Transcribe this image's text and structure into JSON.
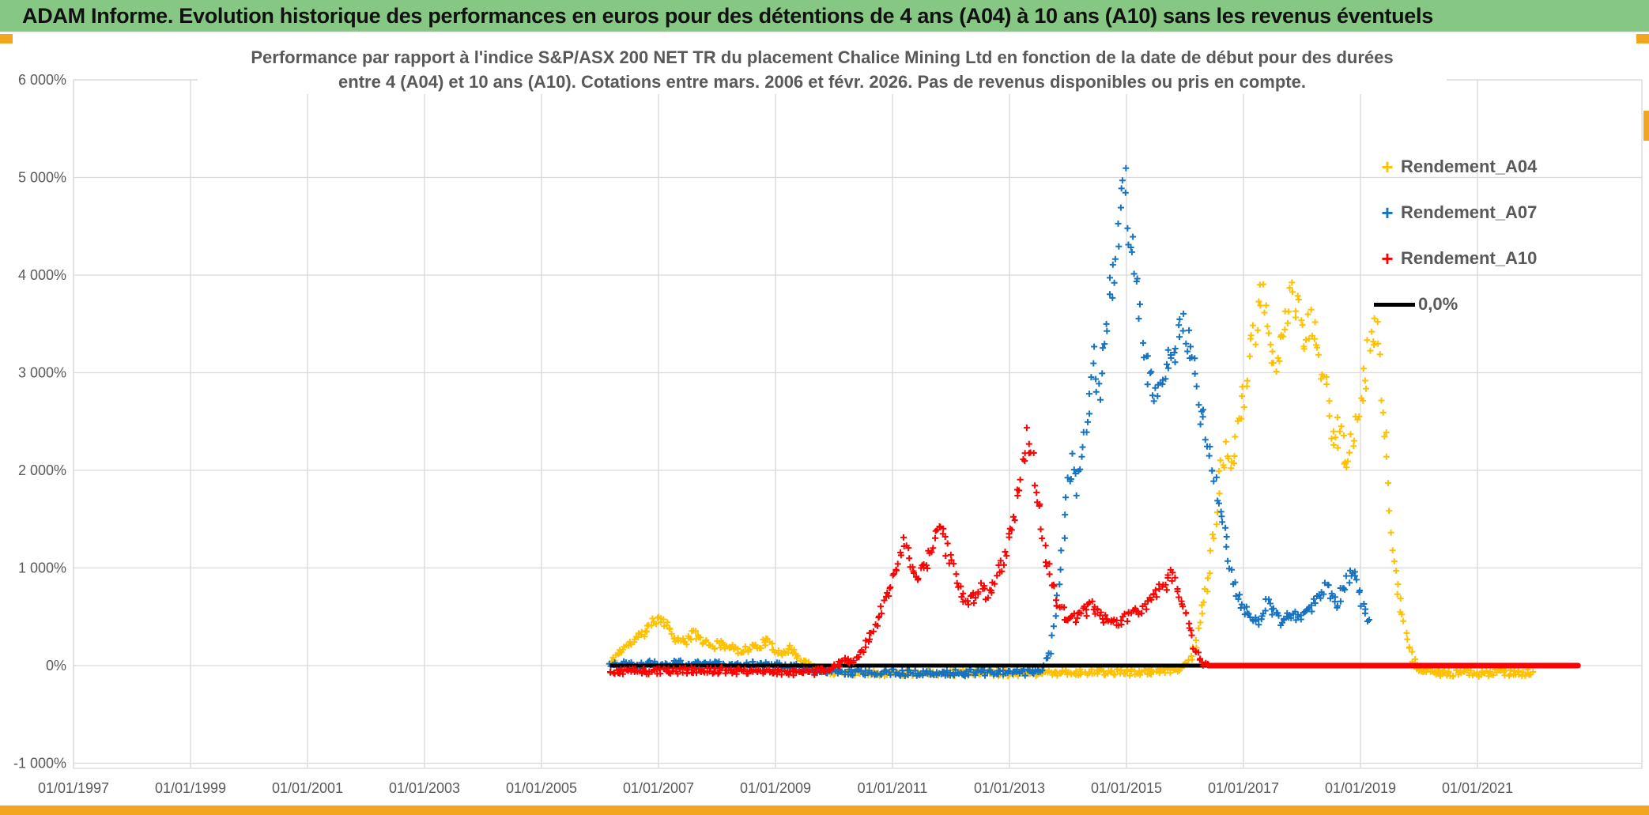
{
  "header": {
    "title": "ADAM Informe. Evolution historique des performances en euros pour des détentions de 4 ans (A04) à 10 ans (A10) sans les revenus éventuels",
    "bar_color": "#85C783",
    "accent_color": "#F2A51F"
  },
  "chart_data": {
    "type": "scatter",
    "title_lines": [
      "Performance par rapport à l'indice S&P/ASX 200 NET TR  du placement Chalice Mining Ltd en fonction de la date de début pour des durées",
      "entre 4 (A04) et 10 ans (A10). Cotations entre mars. 2006 et févr. 2026. Pas de revenus disponibles ou pris en compte."
    ],
    "grid": true,
    "grid_color": "#D9D9D9",
    "axis_text_color": "#595959",
    "x_axis": {
      "tick_labels": [
        "01/01/1997",
        "01/01/1999",
        "01/01/2001",
        "01/01/2003",
        "01/01/2005",
        "01/01/2007",
        "01/01/2009",
        "01/01/2011",
        "01/01/2013",
        "01/01/2015",
        "01/01/2017",
        "01/01/2019",
        "01/01/2021"
      ],
      "tick_years": [
        1997,
        1999,
        2001,
        2003,
        2005,
        2007,
        2009,
        2011,
        2013,
        2015,
        2017,
        2019,
        2021
      ],
      "range_years": [
        1997,
        2023.7
      ]
    },
    "y_axis": {
      "tick_labels": [
        "-1 000%",
        "0%",
        "1 000%",
        "2 000%",
        "3 000%",
        "4 000%",
        "5 000%",
        "6 000%"
      ],
      "tick_values": [
        -1000,
        0,
        1000,
        2000,
        3000,
        4000,
        5000,
        6000
      ],
      "ylim": [
        -1000,
        6000
      ]
    },
    "legend": {
      "position": "top-right",
      "entries": [
        {
          "label": "Rendement_A04",
          "marker": "plus",
          "color": "#FFC000"
        },
        {
          "label": "Rendement_A07",
          "marker": "plus",
          "color": "#1673C2"
        },
        {
          "label": "Rendement_A10",
          "marker": "plus",
          "color": "#FF0000"
        },
        {
          "label": "0,0%",
          "marker": "line",
          "color": "#000000"
        }
      ]
    },
    "series": [
      {
        "name": "Rendement_A04",
        "color": "#FFC000",
        "marker": "plus",
        "seed": 11,
        "points": [
          [
            2006.17,
            20
          ],
          [
            2006.3,
            120
          ],
          [
            2006.45,
            200
          ],
          [
            2006.6,
            260
          ],
          [
            2006.75,
            340
          ],
          [
            2006.9,
            430
          ],
          [
            2007.0,
            520
          ],
          [
            2007.08,
            460
          ],
          [
            2007.17,
            390
          ],
          [
            2007.25,
            320
          ],
          [
            2007.33,
            260
          ],
          [
            2007.45,
            235
          ],
          [
            2007.55,
            300
          ],
          [
            2007.63,
            330
          ],
          [
            2007.7,
            280
          ],
          [
            2007.8,
            235
          ],
          [
            2007.9,
            195
          ],
          [
            2008.0,
            210
          ],
          [
            2008.1,
            225
          ],
          [
            2008.25,
            180
          ],
          [
            2008.4,
            160
          ],
          [
            2008.55,
            175
          ],
          [
            2008.7,
            200
          ],
          [
            2008.85,
            255
          ],
          [
            2008.95,
            170
          ],
          [
            2009.1,
            140
          ],
          [
            2009.25,
            170
          ],
          [
            2009.4,
            90
          ],
          [
            2009.55,
            20
          ],
          [
            2009.7,
            -40
          ],
          [
            2010.0,
            -65
          ],
          [
            2010.5,
            -70
          ],
          [
            2011.0,
            -75
          ],
          [
            2011.5,
            -70
          ],
          [
            2012.0,
            -75
          ],
          [
            2012.5,
            -70
          ],
          [
            2013.0,
            -75
          ],
          [
            2013.5,
            -70
          ],
          [
            2014.0,
            -70
          ],
          [
            2014.5,
            -65
          ],
          [
            2015.0,
            -70
          ],
          [
            2015.5,
            -65
          ],
          [
            2015.9,
            -40
          ],
          [
            2016.05,
            30
          ],
          [
            2016.15,
            150
          ],
          [
            2016.25,
            420
          ],
          [
            2016.4,
            900
          ],
          [
            2016.5,
            1400
          ],
          [
            2016.6,
            1900
          ],
          [
            2016.7,
            2200
          ],
          [
            2016.8,
            1950
          ],
          [
            2016.9,
            2400
          ],
          [
            2017.0,
            2700
          ],
          [
            2017.1,
            3100
          ],
          [
            2017.2,
            3400
          ],
          [
            2017.3,
            3750
          ],
          [
            2017.4,
            3550
          ],
          [
            2017.5,
            3250
          ],
          [
            2017.55,
            2950
          ],
          [
            2017.65,
            3300
          ],
          [
            2017.75,
            3600
          ],
          [
            2017.85,
            3850
          ],
          [
            2017.95,
            3600
          ],
          [
            2018.05,
            3300
          ],
          [
            2018.15,
            3500
          ],
          [
            2018.25,
            3350
          ],
          [
            2018.35,
            3000
          ],
          [
            2018.45,
            2650
          ],
          [
            2018.55,
            2300
          ],
          [
            2018.65,
            2450
          ],
          [
            2018.75,
            2100
          ],
          [
            2018.85,
            2250
          ],
          [
            2018.95,
            2500
          ],
          [
            2019.05,
            2900
          ],
          [
            2019.15,
            3300
          ],
          [
            2019.2,
            3450
          ],
          [
            2019.3,
            3350
          ],
          [
            2019.35,
            2800
          ],
          [
            2019.45,
            2100
          ],
          [
            2019.5,
            1500
          ],
          [
            2019.6,
            1000
          ],
          [
            2019.7,
            600
          ],
          [
            2019.8,
            250
          ],
          [
            2019.9,
            60
          ],
          [
            2020.0,
            -40
          ],
          [
            2020.2,
            -70
          ],
          [
            2020.5,
            -85
          ],
          [
            2020.8,
            -75
          ],
          [
            2021.1,
            -80
          ],
          [
            2021.4,
            -70
          ],
          [
            2021.7,
            -80
          ],
          [
            2021.95,
            -65
          ]
        ]
      },
      {
        "name": "Rendement_A07",
        "color": "#1673C2",
        "marker": "plus",
        "seed": 22,
        "points": [
          [
            2006.17,
            10
          ],
          [
            2006.4,
            25
          ],
          [
            2006.6,
            10
          ],
          [
            2006.8,
            30
          ],
          [
            2007.0,
            15
          ],
          [
            2007.3,
            25
          ],
          [
            2007.6,
            10
          ],
          [
            2007.9,
            20
          ],
          [
            2008.2,
            10
          ],
          [
            2008.5,
            15
          ],
          [
            2008.8,
            5
          ],
          [
            2009.1,
            10
          ],
          [
            2009.4,
            -10
          ],
          [
            2009.6,
            -50
          ],
          [
            2009.9,
            -65
          ],
          [
            2010.2,
            -70
          ],
          [
            2010.6,
            -65
          ],
          [
            2011.0,
            -70
          ],
          [
            2011.4,
            -75
          ],
          [
            2011.8,
            -70
          ],
          [
            2012.2,
            -75
          ],
          [
            2012.6,
            -70
          ],
          [
            2013.0,
            -72
          ],
          [
            2013.3,
            -70
          ],
          [
            2013.55,
            -50
          ],
          [
            2013.7,
            150
          ],
          [
            2013.8,
            600
          ],
          [
            2013.9,
            1200
          ],
          [
            2014.0,
            1800
          ],
          [
            2014.07,
            2100
          ],
          [
            2014.15,
            1850
          ],
          [
            2014.25,
            2200
          ],
          [
            2014.35,
            2600
          ],
          [
            2014.45,
            3100
          ],
          [
            2014.55,
            2850
          ],
          [
            2014.65,
            3400
          ],
          [
            2014.75,
            3900
          ],
          [
            2014.85,
            4400
          ],
          [
            2014.92,
            4900
          ],
          [
            2014.97,
            5120
          ],
          [
            2015.02,
            4650
          ],
          [
            2015.07,
            4300
          ],
          [
            2015.12,
            4450
          ],
          [
            2015.17,
            4050
          ],
          [
            2015.22,
            3650
          ],
          [
            2015.3,
            3300
          ],
          [
            2015.4,
            2950
          ],
          [
            2015.5,
            2700
          ],
          [
            2015.6,
            2850
          ],
          [
            2015.7,
            3050
          ],
          [
            2015.8,
            3200
          ],
          [
            2015.9,
            3350
          ],
          [
            2016.0,
            3480
          ],
          [
            2016.08,
            3250
          ],
          [
            2016.17,
            2900
          ],
          [
            2016.25,
            2600
          ],
          [
            2016.35,
            2350
          ],
          [
            2016.45,
            2050
          ],
          [
            2016.55,
            1750
          ],
          [
            2016.65,
            1450
          ],
          [
            2016.75,
            1100
          ],
          [
            2016.85,
            800
          ],
          [
            2016.95,
            640
          ],
          [
            2017.1,
            520
          ],
          [
            2017.25,
            440
          ],
          [
            2017.4,
            650
          ],
          [
            2017.5,
            560
          ],
          [
            2017.65,
            430
          ],
          [
            2017.8,
            520
          ],
          [
            2017.95,
            480
          ],
          [
            2018.1,
            540
          ],
          [
            2018.25,
            680
          ],
          [
            2018.4,
            800
          ],
          [
            2018.5,
            720
          ],
          [
            2018.6,
            640
          ],
          [
            2018.7,
            780
          ],
          [
            2018.8,
            920
          ],
          [
            2018.88,
            1000
          ],
          [
            2018.95,
            840
          ],
          [
            2019.05,
            620
          ],
          [
            2019.15,
            470
          ]
        ]
      },
      {
        "name": "Rendement_A10",
        "color": "#FF0000",
        "marker": "plus",
        "seed": 33,
        "points": [
          [
            2006.17,
            -75
          ],
          [
            2006.35,
            -60
          ],
          [
            2006.6,
            -55
          ],
          [
            2006.85,
            -60
          ],
          [
            2007.1,
            -50
          ],
          [
            2007.35,
            -55
          ],
          [
            2007.6,
            -50
          ],
          [
            2007.85,
            -55
          ],
          [
            2008.1,
            -50
          ],
          [
            2008.35,
            -55
          ],
          [
            2008.6,
            -60
          ],
          [
            2008.85,
            -55
          ],
          [
            2009.1,
            -65
          ],
          [
            2009.35,
            -75
          ],
          [
            2009.6,
            -70
          ],
          [
            2009.8,
            -55
          ],
          [
            2010.0,
            -20
          ],
          [
            2010.15,
            70
          ],
          [
            2010.3,
            30
          ],
          [
            2010.45,
            120
          ],
          [
            2010.6,
            280
          ],
          [
            2010.75,
            480
          ],
          [
            2010.9,
            680
          ],
          [
            2011.0,
            850
          ],
          [
            2011.1,
            1050
          ],
          [
            2011.18,
            1250
          ],
          [
            2011.28,
            1100
          ],
          [
            2011.4,
            880
          ],
          [
            2011.5,
            950
          ],
          [
            2011.6,
            1050
          ],
          [
            2011.7,
            1250
          ],
          [
            2011.8,
            1380
          ],
          [
            2011.9,
            1250
          ],
          [
            2012.0,
            1080
          ],
          [
            2012.1,
            880
          ],
          [
            2012.2,
            720
          ],
          [
            2012.3,
            640
          ],
          [
            2012.4,
            700
          ],
          [
            2012.5,
            800
          ],
          [
            2012.6,
            720
          ],
          [
            2012.7,
            820
          ],
          [
            2012.8,
            950
          ],
          [
            2012.9,
            1050
          ],
          [
            2013.0,
            1300
          ],
          [
            2013.1,
            1600
          ],
          [
            2013.2,
            1950
          ],
          [
            2013.3,
            2330
          ],
          [
            2013.37,
            2150
          ],
          [
            2013.45,
            1850
          ],
          [
            2013.55,
            1450
          ],
          [
            2013.65,
            1050
          ],
          [
            2013.75,
            800
          ],
          [
            2013.85,
            620
          ],
          [
            2013.95,
            520
          ],
          [
            2014.1,
            480
          ],
          [
            2014.25,
            540
          ],
          [
            2014.4,
            600
          ],
          [
            2014.55,
            520
          ],
          [
            2014.7,
            460
          ],
          [
            2014.85,
            420
          ],
          [
            2015.0,
            500
          ],
          [
            2015.1,
            590
          ],
          [
            2015.2,
            540
          ],
          [
            2015.35,
            630
          ],
          [
            2015.5,
            720
          ],
          [
            2015.65,
            820
          ],
          [
            2015.78,
            930
          ],
          [
            2015.88,
            780
          ],
          [
            2015.98,
            600
          ],
          [
            2016.08,
            380
          ],
          [
            2016.18,
            160
          ],
          [
            2016.3,
            40
          ],
          [
            2016.4,
            8
          ]
        ]
      }
    ],
    "zero_line": {
      "label": "0,0%",
      "color": "#000000",
      "value": 0,
      "from_year": 2006.17,
      "to_year": 2022.72
    },
    "a10_flat_zero_segment": {
      "color": "#FF0000",
      "value": 0,
      "from_year": 2016.4,
      "to_year": 2022.72
    }
  }
}
